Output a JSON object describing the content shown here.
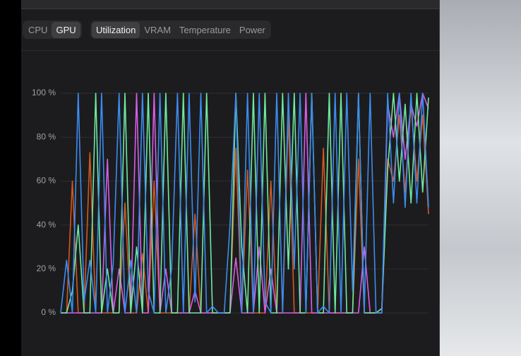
{
  "tabs": {
    "device": [
      "CPU",
      "GPU"
    ],
    "device_active": 1,
    "metric": [
      "Utilization",
      "VRAM",
      "Temperature",
      "Power"
    ],
    "metric_active": 0
  },
  "chart_data": {
    "type": "line",
    "ylim": [
      0,
      100
    ],
    "yticks": [
      {
        "value": 0,
        "label": "0 %"
      },
      {
        "value": 20,
        "label": "20 %"
      },
      {
        "value": 40,
        "label": "40 %"
      },
      {
        "value": 60,
        "label": "60 %"
      },
      {
        "value": 80,
        "label": "80 %"
      },
      {
        "value": 100,
        "label": "100 %"
      }
    ],
    "grid": true,
    "series": [
      {
        "color": "#d2581e",
        "values": [
          0,
          0,
          60,
          0,
          0,
          73,
          0,
          0,
          0,
          0,
          0,
          50,
          0,
          0,
          27,
          0,
          60,
          0,
          0,
          0,
          0,
          0,
          0,
          45,
          0,
          0,
          0,
          0,
          0,
          0,
          75,
          0,
          65,
          0,
          0,
          0,
          60,
          0,
          0,
          90,
          0,
          0,
          0,
          0,
          0,
          75,
          0,
          0,
          0,
          0,
          0,
          70,
          0,
          0,
          0,
          0,
          70,
          60,
          90,
          55,
          95,
          60,
          90,
          45
        ]
      },
      {
        "color": "#d65ee8",
        "values": [
          0,
          0,
          0,
          0,
          0,
          0,
          0,
          0,
          70,
          0,
          20,
          0,
          0,
          100,
          0,
          0,
          100,
          0,
          20,
          0,
          0,
          0,
          0,
          10,
          0,
          0,
          0,
          0,
          0,
          0,
          25,
          0,
          0,
          0,
          30,
          0,
          20,
          0,
          0,
          0,
          0,
          0,
          100,
          0,
          0,
          0,
          0,
          0,
          0,
          0,
          0,
          0,
          30,
          0,
          0,
          0,
          95,
          80,
          100,
          70,
          95,
          85,
          100,
          93
        ]
      },
      {
        "color": "#6ee9a0",
        "values": [
          0,
          0,
          10,
          40,
          0,
          0,
          100,
          0,
          20,
          0,
          0,
          100,
          0,
          30,
          0,
          100,
          0,
          0,
          100,
          0,
          0,
          100,
          0,
          0,
          0,
          100,
          0,
          0,
          0,
          0,
          100,
          30,
          0,
          100,
          0,
          100,
          0,
          0,
          100,
          20,
          100,
          0,
          0,
          100,
          0,
          0,
          100,
          0,
          100,
          0,
          0,
          100,
          0,
          0,
          0,
          2,
          65,
          100,
          60,
          95,
          50,
          100,
          55,
          98
        ]
      },
      {
        "color": "#3b8cf0",
        "values": [
          0,
          24,
          0,
          100,
          5,
          24,
          0,
          100,
          0,
          22,
          100,
          0,
          24,
          0,
          100,
          10,
          0,
          100,
          0,
          20,
          100,
          0,
          100,
          5,
          100,
          0,
          3,
          0,
          0,
          40,
          100,
          0,
          100,
          0,
          100,
          5,
          0,
          100,
          0,
          100,
          20,
          100,
          0,
          100,
          0,
          3,
          0,
          100,
          0,
          100,
          10,
          100,
          0,
          100,
          0,
          0,
          100,
          50,
          100,
          48,
          100,
          50,
          100,
          48
        ]
      }
    ]
  }
}
